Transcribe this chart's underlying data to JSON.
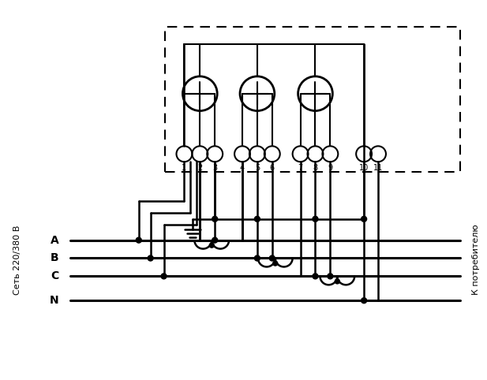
{
  "bg_color": "#ffffff",
  "line_color": "#000000",
  "lw": 1.8,
  "lw_thick": 2.2,
  "left_label": "Сеть 220/380 В",
  "right_label": "К потребителю",
  "phase_labels": [
    "A",
    "B",
    "C",
    "N"
  ],
  "terminal_labels": [
    "1",
    "2",
    "3",
    "4",
    "5",
    "6",
    "7",
    "8",
    "9",
    "10",
    "11"
  ]
}
